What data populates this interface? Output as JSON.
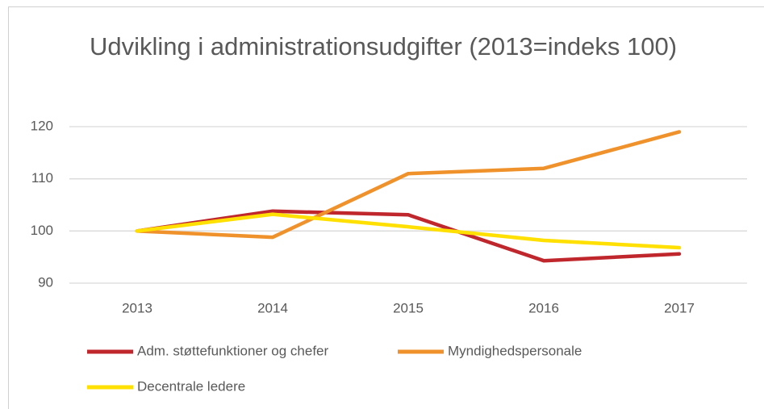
{
  "chart_data": {
    "type": "line",
    "title": "Udvikling i administrationsudgifter (2013=indeks 100)",
    "categories": [
      "2013",
      "2014",
      "2015",
      "2016",
      "2017"
    ],
    "series": [
      {
        "name": "Adm. støttefunktioner og chefer",
        "color": "#c0272d",
        "values": [
          100,
          103.8,
          103.1,
          94.3,
          95.6
        ]
      },
      {
        "name": "Myndighedspersonale",
        "color": "#f0922b",
        "values": [
          100,
          98.8,
          111,
          112,
          119
        ]
      },
      {
        "name": "Decentrale ledere",
        "color": "#ffe000",
        "values": [
          100,
          103.2,
          100.8,
          98.2,
          96.8
        ]
      }
    ],
    "ylim": [
      90,
      120
    ],
    "yticks": [
      90,
      100,
      110,
      120
    ],
    "grid": true,
    "legend": "bottom"
  }
}
